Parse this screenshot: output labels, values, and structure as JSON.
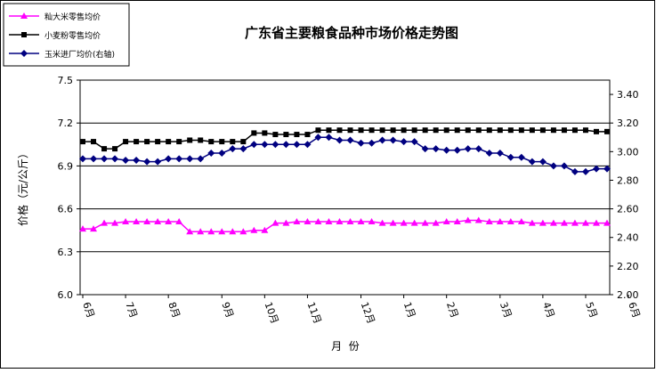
{
  "chart_data": {
    "type": "line",
    "title": "广东省主要粮食品种市场价格走势图",
    "xlabel": "月  份",
    "ylabel": "价格（元/公斤）",
    "ylim": [
      6.0,
      7.5
    ],
    "yticks": [
      "6.0",
      "6.3",
      "6.6",
      "6.9",
      "7.2",
      "7.5"
    ],
    "y2lim": [
      2.0,
      3.5
    ],
    "y2ticks": [
      "2.00",
      "2.20",
      "2.40",
      "2.60",
      "2.80",
      "3.00",
      "3.20",
      "3.40"
    ],
    "grid": true,
    "legend": "top-left",
    "x_labels": [
      {
        "label": "6月",
        "index": 0
      },
      {
        "label": "7月",
        "index": 4
      },
      {
        "label": "8月",
        "index": 8
      },
      {
        "label": "9月",
        "index": 13
      },
      {
        "label": "10月",
        "index": 17
      },
      {
        "label": "11月",
        "index": 21
      },
      {
        "label": "12月",
        "index": 26
      },
      {
        "label": "1月",
        "index": 30
      },
      {
        "label": "2月",
        "index": 34
      },
      {
        "label": "3月",
        "index": 39
      },
      {
        "label": "4月",
        "index": 43
      },
      {
        "label": "5月",
        "index": 47
      },
      {
        "label": "6月",
        "index": 51
      }
    ],
    "series": [
      {
        "name": "籼大米零售均价",
        "axis": "left",
        "color": "#ff00ff",
        "marker": "triangle",
        "values": [
          6.46,
          6.46,
          6.5,
          6.5,
          6.51,
          6.51,
          6.51,
          6.51,
          6.51,
          6.51,
          6.44,
          6.44,
          6.44,
          6.44,
          6.44,
          6.44,
          6.45,
          6.45,
          6.5,
          6.5,
          6.51,
          6.51,
          6.51,
          6.51,
          6.51,
          6.51,
          6.51,
          6.51,
          6.5,
          6.5,
          6.5,
          6.5,
          6.5,
          6.5,
          6.51,
          6.51,
          6.52,
          6.52,
          6.51,
          6.51,
          6.51,
          6.51,
          6.5,
          6.5,
          6.5,
          6.5,
          6.5,
          6.5,
          6.5,
          6.5
        ]
      },
      {
        "name": "小麦粉零售均价",
        "axis": "left",
        "color": "#000000",
        "marker": "square",
        "values": [
          7.07,
          7.07,
          7.02,
          7.02,
          7.07,
          7.07,
          7.07,
          7.07,
          7.07,
          7.07,
          7.08,
          7.08,
          7.07,
          7.07,
          7.07,
          7.07,
          7.13,
          7.13,
          7.12,
          7.12,
          7.12,
          7.12,
          7.15,
          7.15,
          7.15,
          7.15,
          7.15,
          7.15,
          7.15,
          7.15,
          7.15,
          7.15,
          7.15,
          7.15,
          7.15,
          7.15,
          7.15,
          7.15,
          7.15,
          7.15,
          7.15,
          7.15,
          7.15,
          7.15,
          7.15,
          7.15,
          7.15,
          7.15,
          7.14,
          7.14
        ]
      },
      {
        "name": "玉米进厂均价(右轴)",
        "axis": "right",
        "color": "#000080",
        "marker": "diamond",
        "values": [
          2.95,
          2.95,
          2.95,
          2.95,
          2.94,
          2.94,
          2.93,
          2.93,
          2.95,
          2.95,
          2.95,
          2.95,
          2.99,
          2.99,
          3.02,
          3.02,
          3.05,
          3.05,
          3.05,
          3.05,
          3.05,
          3.05,
          3.1,
          3.1,
          3.08,
          3.08,
          3.06,
          3.06,
          3.08,
          3.08,
          3.07,
          3.07,
          3.02,
          3.02,
          3.01,
          3.01,
          3.02,
          3.02,
          2.99,
          2.99,
          2.96,
          2.96,
          2.93,
          2.93,
          2.9,
          2.9,
          2.86,
          2.86,
          2.88,
          2.88
        ]
      }
    ]
  }
}
